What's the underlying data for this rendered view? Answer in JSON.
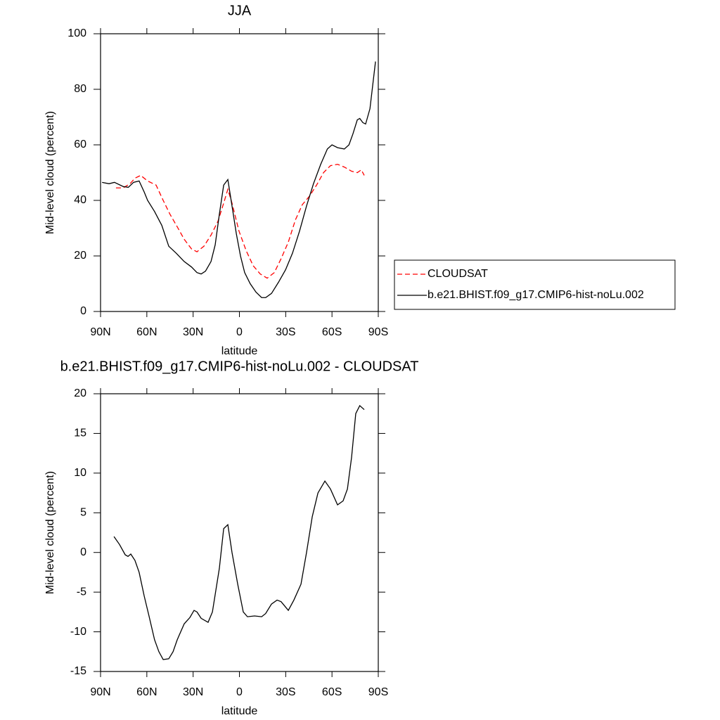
{
  "chart_data": [
    {
      "type": "line",
      "title": "JJA",
      "xlabel": "latitude",
      "ylabel": "Mid-level cloud (percent)",
      "xlim": [
        90,
        -90
      ],
      "ylim": [
        0,
        100
      ],
      "xticks": [
        {
          "value": 90,
          "label": "90N"
        },
        {
          "value": 60,
          "label": "60N"
        },
        {
          "value": 30,
          "label": "30N"
        },
        0,
        {
          "value": -30,
          "label": "30S"
        },
        {
          "value": -60,
          "label": "60S"
        },
        {
          "value": -90,
          "label": "90S"
        }
      ],
      "yticks": [
        0,
        20,
        40,
        60,
        80,
        100
      ],
      "legend": "right",
      "series": [
        {
          "name": "CLOUDSAT",
          "color": "#ff0000",
          "line_style": "dashed",
          "x": [
            80,
            75.4,
            70.9,
            67.7,
            64,
            59.5,
            54,
            49.4,
            45,
            40.3,
            35.8,
            31,
            27.5,
            23,
            18.4,
            13.9,
            10.2,
            7.5,
            4.8,
            0.3,
            -4.3,
            -8.9,
            -13.5,
            -18,
            -22.6,
            -27,
            -31.7,
            -36.3,
            -40.8,
            -45.4,
            -50,
            -54.5,
            -59,
            -63.6,
            -68,
            -72.7,
            -76.4,
            -79,
            -80.9
          ],
          "values": [
            44.5,
            44.5,
            46,
            48,
            49,
            47,
            45.5,
            40,
            35,
            30.5,
            26,
            22.5,
            21.5,
            23.5,
            27.5,
            32.5,
            39,
            44,
            39,
            29,
            22,
            16.5,
            13.5,
            12,
            14,
            19,
            25,
            33,
            38.5,
            41.5,
            45.5,
            50,
            52.5,
            53,
            52,
            50.5,
            50,
            51,
            49
          ]
        },
        {
          "name": "b.e21.BHIST.f09_g17.CMIP6-hist-noLu.002",
          "color": "#000000",
          "line_style": "solid",
          "x": [
            89,
            84.5,
            81,
            75.4,
            72,
            68.6,
            65,
            61.7,
            59.5,
            55,
            50.3,
            45.8,
            41,
            35.8,
            31,
            27.5,
            24.8,
            22,
            18.4,
            15.7,
            13,
            10.2,
            7.5,
            4.8,
            2,
            -0.7,
            -3.4,
            -7,
            -10.7,
            -14.4,
            -17,
            -20.8,
            -25.3,
            -29.9,
            -34.4,
            -39,
            -43.5,
            -48,
            -52.7,
            -57,
            -60,
            -63.6,
            -68,
            -71,
            -73.6,
            -76.4,
            -78,
            -80,
            -81.8,
            -84.6,
            -88.2
          ],
          "values": [
            46.5,
            46,
            46.5,
            45,
            44.7,
            46.5,
            47,
            43,
            40,
            36,
            31,
            23.5,
            21,
            18,
            16,
            14,
            13.5,
            14.5,
            18,
            24,
            35,
            45.5,
            47.5,
            38,
            28,
            20,
            14,
            10,
            7,
            5,
            5,
            6.5,
            10.5,
            15,
            21,
            29,
            38,
            46,
            53,
            58.5,
            60,
            59,
            58.5,
            60,
            64,
            69,
            69.5,
            68,
            67.5,
            73,
            90
          ]
        }
      ]
    },
    {
      "type": "line",
      "title": "b.e21.BHIST.f09_g17.CMIP6-hist-noLu.002 - CLOUDSAT",
      "xlabel": "latitude",
      "ylabel": "Mid-level cloud (percent)",
      "xlim": [
        90,
        -90
      ],
      "ylim": [
        -15,
        20
      ],
      "xticks": [
        {
          "value": 90,
          "label": "90N"
        },
        {
          "value": 60,
          "label": "60N"
        },
        {
          "value": 30,
          "label": "30N"
        },
        0,
        {
          "value": -30,
          "label": "30S"
        },
        {
          "value": -60,
          "label": "60S"
        },
        {
          "value": -90,
          "label": "90S"
        }
      ],
      "yticks": [
        -15,
        -10,
        -5,
        0,
        5,
        10,
        15,
        20
      ],
      "series": [
        {
          "color": "#000000",
          "line_style": "solid",
          "x": [
            81.3,
            77.7,
            74,
            72.2,
            70.4,
            67.7,
            65,
            61.7,
            58.6,
            55,
            52.2,
            49.4,
            45.8,
            43,
            40.3,
            35.8,
            32.1,
            29.4,
            27.5,
            24.8,
            20.3,
            17.5,
            13,
            10.2,
            7.5,
            4.8,
            1.1,
            -2.5,
            -5.2,
            -9.8,
            -14.4,
            -17,
            -20.8,
            -24.4,
            -27,
            -31.7,
            -35.3,
            -39.9,
            -43.5,
            -47.2,
            -50.9,
            -55.4,
            -59,
            -63.6,
            -67.2,
            -70,
            -72.7,
            -75.4,
            -78,
            -80.9
          ],
          "values": [
            2,
            1,
            -0.3,
            -0.5,
            -0.2,
            -1,
            -2.5,
            -5.5,
            -8,
            -11,
            -12.5,
            -13.5,
            -13.4,
            -12.5,
            -11,
            -9,
            -8.2,
            -7.3,
            -7.5,
            -8.3,
            -8.8,
            -7.5,
            -2,
            3,
            3.5,
            0,
            -4,
            -7.5,
            -8.1,
            -8,
            -8.1,
            -7.7,
            -6.5,
            -6,
            -6.2,
            -7.3,
            -6,
            -4,
            0,
            4.5,
            7.5,
            9,
            8,
            6,
            6.5,
            8,
            12,
            17.5,
            18.5,
            18
          ]
        }
      ]
    }
  ]
}
